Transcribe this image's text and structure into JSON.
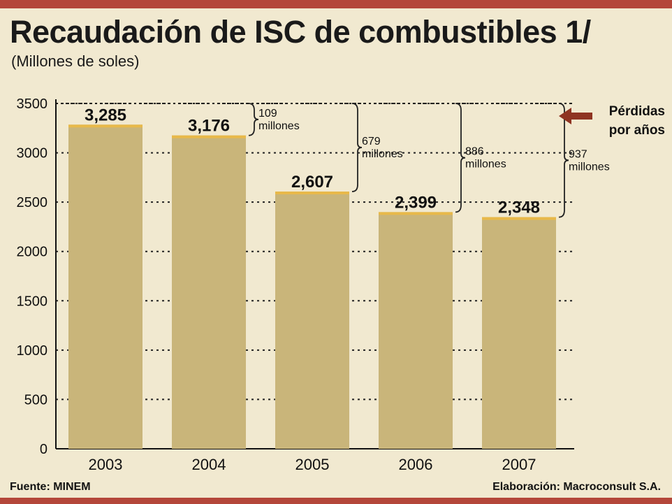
{
  "header": {
    "title": "Recaudación de ISC de combustibles 1/",
    "subtitle": "(Millones de soles)"
  },
  "footer": {
    "source": "Fuente: MINEM",
    "credit": "Elaboración: Macroconsult S.A."
  },
  "colors": {
    "bar": "#c9b57a",
    "bar_top": "#e8b94a",
    "rule": "#b4473a",
    "arrow": "#8f3422"
  },
  "chart_data": {
    "type": "bar",
    "categories": [
      "2003",
      "2004",
      "2005",
      "2006",
      "2007"
    ],
    "values": [
      3285,
      3176,
      2607,
      2399,
      2348
    ],
    "value_labels": [
      "3,285",
      "3,176",
      "2,607",
      "2,399",
      "2,348"
    ],
    "ylim": [
      0,
      3500
    ],
    "yticks": [
      0,
      500,
      1000,
      1500,
      2000,
      2500,
      3000,
      3500
    ],
    "grid": "dotted horizontal",
    "reference_line": 3500,
    "annotations": [
      {
        "from_category": "2004",
        "line1": "109",
        "line2": "millones"
      },
      {
        "from_category": "2005",
        "line1": "679",
        "line2": "millones"
      },
      {
        "from_category": "2006",
        "line1": "886",
        "line2": "millones"
      },
      {
        "from_category": "2007",
        "line1": "937",
        "line2": "millones"
      }
    ],
    "legend_note": [
      "Pérdidas",
      "por años"
    ]
  }
}
